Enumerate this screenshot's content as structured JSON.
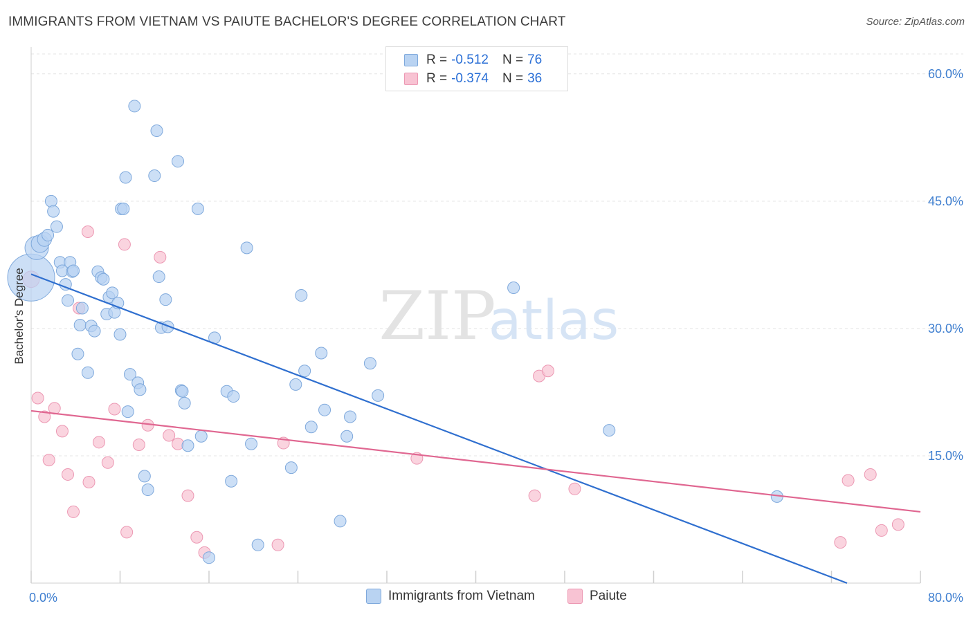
{
  "header": {
    "title": "IMMIGRANTS FROM VIETNAM VS PAIUTE BACHELOR'S DEGREE CORRELATION CHART",
    "source": "Source: ZipAtlas.com"
  },
  "watermark": {
    "zip": "ZIP",
    "atlas": "atlas"
  },
  "legend": {
    "rows": [
      {
        "r_label": "R =",
        "r_value": "-0.512",
        "n_label": "N =",
        "n_value": "76"
      },
      {
        "r_label": "R =",
        "r_value": "-0.374",
        "n_label": "N =",
        "n_value": "36"
      }
    ]
  },
  "colors": {
    "vietnam_fill": "#b9d3f2",
    "vietnam_stroke": "#7fa9dc",
    "vietnam_line": "#2f6fcf",
    "paiute_fill": "#f8c3d3",
    "paiute_stroke": "#ec98b3",
    "paiute_line": "#e06791",
    "tick_label": "#3f7fd0"
  },
  "chart_data": {
    "type": "scatter",
    "title": "IMMIGRANTS FROM VIETNAM VS PAIUTE BACHELOR'S DEGREE CORRELATION CHART",
    "xlabel": "",
    "ylabel": "Bachelor's Degree",
    "xlim": [
      0,
      80
    ],
    "ylim": [
      0,
      63
    ],
    "x_tick_labels": [
      "0.0%",
      "80.0%"
    ],
    "y_ticks": [
      15,
      30,
      45,
      60
    ],
    "y_tick_labels": [
      "15.0%",
      "30.0%",
      "45.0%",
      "60.0%"
    ],
    "grid": true,
    "legend_position": "top-center",
    "series": [
      {
        "name": "Immigrants from Vietnam",
        "r": -0.512,
        "n": 76,
        "trend": {
          "x": [
            0,
            73.4
          ],
          "y": [
            36.4,
            0
          ]
        },
        "points": [
          [
            0,
            36,
            4
          ],
          [
            0.5,
            39.5,
            2
          ],
          [
            0.8,
            40,
            1.5
          ],
          [
            1.2,
            40.5,
            1.2
          ],
          [
            1.5,
            41,
            1
          ],
          [
            1.8,
            45,
            1
          ],
          [
            2,
            43.8,
            1
          ],
          [
            2.3,
            42,
            1
          ],
          [
            2.6,
            37.8,
            1
          ],
          [
            2.8,
            36.8,
            1
          ],
          [
            3.1,
            35.2,
            1
          ],
          [
            3.3,
            33.3,
            1
          ],
          [
            3.5,
            37.8,
            1
          ],
          [
            3.7,
            36.7,
            1
          ],
          [
            4.2,
            27,
            1
          ],
          [
            4.4,
            30.4,
            1
          ],
          [
            4.6,
            32.4,
            1
          ],
          [
            5.1,
            24.8,
            1
          ],
          [
            5.4,
            30.3,
            1
          ],
          [
            5.7,
            29.7,
            1
          ],
          [
            6,
            36.7,
            1
          ],
          [
            6.3,
            36,
            1
          ],
          [
            6.5,
            35.8,
            1
          ],
          [
            6.8,
            31.7,
            1
          ],
          [
            7.0,
            33.7,
            1
          ],
          [
            7.3,
            34.2,
            1
          ],
          [
            7.5,
            31.9,
            1
          ],
          [
            7.8,
            33,
            1
          ],
          [
            8,
            29.3,
            1
          ],
          [
            8.1,
            44.1,
            1
          ],
          [
            8.3,
            44.1,
            1
          ],
          [
            8.5,
            47.8,
            1
          ],
          [
            8.7,
            20.2,
            1
          ],
          [
            8.9,
            24.6,
            1
          ],
          [
            9.3,
            56.2,
            1
          ],
          [
            9.6,
            23.6,
            1
          ],
          [
            9.8,
            22.8,
            1
          ],
          [
            10.2,
            12.6,
            1
          ],
          [
            10.5,
            11,
            1
          ],
          [
            11.1,
            48,
            1
          ],
          [
            11.3,
            53.3,
            1
          ],
          [
            11.5,
            36.1,
            1
          ],
          [
            11.7,
            30.1,
            1
          ],
          [
            12.1,
            33.4,
            1
          ],
          [
            12.3,
            30.2,
            1
          ],
          [
            13.2,
            49.7,
            1
          ],
          [
            13.5,
            22.7,
            1
          ],
          [
            13.8,
            21.2,
            1
          ],
          [
            14.1,
            16.2,
            1
          ],
          [
            15,
            44.1,
            1
          ],
          [
            15.3,
            17.3,
            1
          ],
          [
            16.5,
            28.9,
            1
          ],
          [
            17.6,
            22.6,
            1
          ],
          [
            18,
            12,
            1
          ],
          [
            18.2,
            22,
            1
          ],
          [
            19.4,
            39.5,
            1
          ],
          [
            19.8,
            16.4,
            1
          ],
          [
            20.4,
            4.5,
            1
          ],
          [
            23.4,
            13.6,
            1
          ],
          [
            23.8,
            23.4,
            1
          ],
          [
            24.3,
            33.9,
            1
          ],
          [
            24.6,
            25,
            1
          ],
          [
            25.2,
            18.4,
            1
          ],
          [
            26.1,
            27.1,
            1
          ],
          [
            26.4,
            20.4,
            1
          ],
          [
            27.8,
            7.3,
            1
          ],
          [
            28.4,
            17.3,
            1
          ],
          [
            28.7,
            19.6,
            1
          ],
          [
            30.5,
            25.9,
            1
          ],
          [
            31.2,
            22.1,
            1
          ],
          [
            16,
            3,
            1
          ],
          [
            13.6,
            22.6,
            1
          ],
          [
            3.8,
            36.8,
            1
          ],
          [
            43.4,
            34.8,
            1
          ],
          [
            52,
            18,
            1
          ],
          [
            67.1,
            10.2,
            1
          ]
        ]
      },
      {
        "name": "Paiute",
        "r": -0.374,
        "n": 36,
        "trend": {
          "x": [
            0,
            80
          ],
          "y": [
            20.3,
            8.4
          ]
        },
        "points": [
          [
            0,
            35.8,
            1.4
          ],
          [
            0.6,
            21.8,
            1
          ],
          [
            1.2,
            19.6,
            1
          ],
          [
            1.6,
            14.5,
            1
          ],
          [
            2.1,
            20.6,
            1
          ],
          [
            2.8,
            17.9,
            1
          ],
          [
            3.3,
            12.8,
            1
          ],
          [
            3.8,
            8.4,
            1
          ],
          [
            4.3,
            32.4,
            1
          ],
          [
            5.1,
            41.4,
            1
          ],
          [
            5.2,
            11.9,
            1
          ],
          [
            6.1,
            16.6,
            1
          ],
          [
            6.9,
            14.2,
            1
          ],
          [
            7.5,
            20.5,
            1
          ],
          [
            8.4,
            39.9,
            1
          ],
          [
            8.6,
            6,
            1
          ],
          [
            9.7,
            16.3,
            1
          ],
          [
            10.5,
            18.6,
            1
          ],
          [
            11.6,
            38.4,
            1
          ],
          [
            12.4,
            17.4,
            1
          ],
          [
            13.2,
            16.4,
            1
          ],
          [
            14.1,
            10.3,
            1
          ],
          [
            14.9,
            5.4,
            1
          ],
          [
            15.6,
            3.6,
            1
          ],
          [
            22.2,
            4.5,
            1
          ],
          [
            22.7,
            16.5,
            1
          ],
          [
            34.7,
            14.7,
            1
          ],
          [
            45.3,
            10.3,
            1
          ],
          [
            45.7,
            24.4,
            1
          ],
          [
            46.5,
            25,
            1
          ],
          [
            48.9,
            11.1,
            1
          ],
          [
            72.8,
            4.8,
            1
          ],
          [
            73.5,
            12.1,
            1
          ],
          [
            75.5,
            12.8,
            1
          ],
          [
            76.5,
            6.2,
            1
          ],
          [
            78,
            6.9,
            1
          ]
        ]
      }
    ]
  }
}
